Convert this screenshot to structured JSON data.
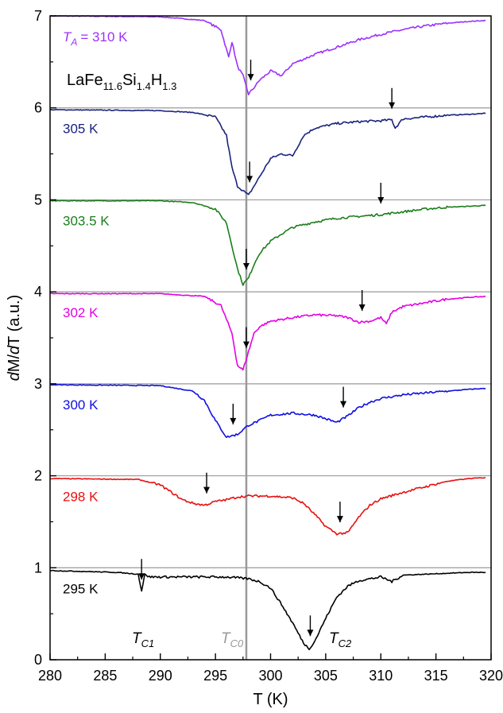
{
  "chart_data": {
    "type": "line",
    "xlabel": "T (K)",
    "ylabel": "dM/dT (a.u.)",
    "xlim": [
      280,
      320
    ],
    "ylim": [
      0,
      7
    ],
    "xticks": [
      "280",
      "285",
      "290",
      "295",
      "300",
      "305",
      "310",
      "315",
      "320"
    ],
    "yticks": [
      "0",
      "1",
      "2",
      "3",
      "4",
      "5",
      "6",
      "7"
    ],
    "compound": {
      "base": "LaFe",
      "s1": "11.6",
      "mid": "Si",
      "s2": "1.4",
      "end": "H",
      "s3": "1.3"
    },
    "reference_line": {
      "x": 297.8,
      "color": "#999999"
    },
    "grid_lines_y": [
      1,
      2,
      3,
      4,
      5,
      6
    ],
    "annotations": [
      {
        "main": "T",
        "sub": "C1",
        "color": "#000000"
      },
      {
        "main": "T",
        "sub": "C0",
        "color": "#999999"
      },
      {
        "main": "T",
        "sub": "C2",
        "color": "#000000"
      }
    ],
    "series": [
      {
        "name": "T_A = 310 K",
        "label": "= 310 K",
        "label_prefix": "T",
        "label_prefix_sub": "A",
        "color": "#9B30FF",
        "baseline": 7,
        "x": [
          280,
          290,
          294,
          295.5,
          296.2,
          296.5,
          297,
          297.5,
          298,
          298.5,
          299,
          300,
          301,
          302,
          304,
          306,
          308,
          310,
          312,
          314,
          316,
          318,
          319.5
        ],
        "y": [
          7.0,
          6.99,
          6.95,
          6.85,
          6.55,
          6.72,
          6.45,
          6.35,
          6.15,
          6.22,
          6.3,
          6.4,
          6.35,
          6.48,
          6.58,
          6.66,
          6.74,
          6.8,
          6.85,
          6.89,
          6.92,
          6.94,
          6.95
        ],
        "arrows": [
          298.2
        ]
      },
      {
        "name": "305 K",
        "label": "305 K",
        "color": "#1A237E",
        "baseline": 6,
        "x": [
          280,
          290,
          293,
          295,
          296,
          296.5,
          297,
          297.5,
          298,
          298.5,
          299,
          300,
          301,
          302,
          303,
          304,
          306,
          308,
          310,
          311,
          311.3,
          312,
          314,
          316,
          318,
          319.5
        ],
        "y": [
          5.98,
          5.97,
          5.95,
          5.9,
          5.7,
          5.35,
          5.15,
          5.1,
          5.05,
          5.15,
          5.25,
          5.45,
          5.5,
          5.48,
          5.7,
          5.78,
          5.83,
          5.85,
          5.86,
          5.87,
          5.78,
          5.88,
          5.9,
          5.92,
          5.93,
          5.94
        ],
        "arrows": [
          298.1,
          311.0
        ]
      },
      {
        "name": "303.5 K",
        "label": "303.5 K",
        "color": "#1B7F1B",
        "baseline": 5,
        "x": [
          280,
          290,
          293,
          295,
          296,
          296.5,
          297,
          297.5,
          298,
          298.5,
          299,
          300,
          301,
          302,
          304,
          306,
          308,
          310,
          312,
          314,
          316,
          318,
          319.5
        ],
        "y": [
          4.99,
          4.99,
          4.97,
          4.9,
          4.75,
          4.5,
          4.25,
          4.08,
          4.15,
          4.3,
          4.42,
          4.55,
          4.63,
          4.7,
          4.76,
          4.8,
          4.82,
          4.84,
          4.87,
          4.9,
          4.92,
          4.93,
          4.94
        ],
        "arrows": [
          297.8,
          310.0
        ]
      },
      {
        "name": "302 K",
        "label": "302 K",
        "color": "#E500E5",
        "baseline": 4,
        "x": [
          280,
          290,
          294,
          295.5,
          296.5,
          297,
          297.5,
          298,
          298.5,
          299,
          300,
          302,
          304,
          306,
          307,
          308,
          309,
          310,
          310.5,
          311,
          312,
          314,
          316,
          318,
          319.5
        ],
        "y": [
          3.98,
          3.98,
          3.95,
          3.85,
          3.55,
          3.2,
          3.15,
          3.35,
          3.55,
          3.62,
          3.68,
          3.72,
          3.75,
          3.74,
          3.72,
          3.67,
          3.68,
          3.72,
          3.65,
          3.78,
          3.84,
          3.88,
          3.92,
          3.94,
          3.95
        ],
        "arrows": [
          297.8,
          308.3
        ]
      },
      {
        "name": "300 K",
        "label": "300 K",
        "color": "#1010E0",
        "baseline": 3,
        "x": [
          280,
          290,
          293,
          294,
          295,
          296,
          297,
          298,
          299,
          300,
          302,
          304,
          305,
          306,
          307,
          308,
          309,
          310,
          312,
          314,
          316,
          318,
          319.5
        ],
        "y": [
          2.99,
          2.98,
          2.92,
          2.82,
          2.6,
          2.42,
          2.45,
          2.55,
          2.6,
          2.66,
          2.68,
          2.66,
          2.62,
          2.58,
          2.65,
          2.74,
          2.8,
          2.84,
          2.88,
          2.9,
          2.92,
          2.94,
          2.95
        ],
        "arrows": [
          296.6,
          306.6
        ]
      },
      {
        "name": "298 K",
        "label": "298 K",
        "color": "#E81010",
        "baseline": 2,
        "x": [
          280,
          288,
          290,
          291,
          292,
          293,
          294,
          295,
          296,
          297,
          298,
          300,
          302,
          303,
          304,
          305,
          306,
          307,
          308,
          309,
          310,
          312,
          314,
          316,
          318,
          319.5
        ],
        "y": [
          1.97,
          1.96,
          1.9,
          1.82,
          1.74,
          1.7,
          1.68,
          1.72,
          1.74,
          1.77,
          1.78,
          1.78,
          1.76,
          1.7,
          1.58,
          1.45,
          1.37,
          1.38,
          1.55,
          1.68,
          1.75,
          1.82,
          1.88,
          1.94,
          1.97,
          1.98
        ],
        "arrows": [
          294.2,
          306.3
        ]
      },
      {
        "name": "295 K",
        "label": "295 K",
        "color": "#000000",
        "baseline": 1,
        "x": [
          280,
          286,
          288,
          288.3,
          288.6,
          289,
          290,
          294,
          296,
          298,
          299,
          300,
          301,
          302,
          303,
          303.5,
          304,
          305,
          306,
          307,
          308,
          310,
          311,
          312,
          314,
          316,
          318,
          319.5
        ],
        "y": [
          0.97,
          0.95,
          0.93,
          0.75,
          0.93,
          0.9,
          0.9,
          0.9,
          0.9,
          0.88,
          0.85,
          0.78,
          0.6,
          0.4,
          0.18,
          0.12,
          0.2,
          0.45,
          0.68,
          0.8,
          0.86,
          0.9,
          0.85,
          0.92,
          0.93,
          0.94,
          0.95,
          0.95
        ],
        "arrows": [
          288.3,
          303.6
        ]
      }
    ]
  }
}
